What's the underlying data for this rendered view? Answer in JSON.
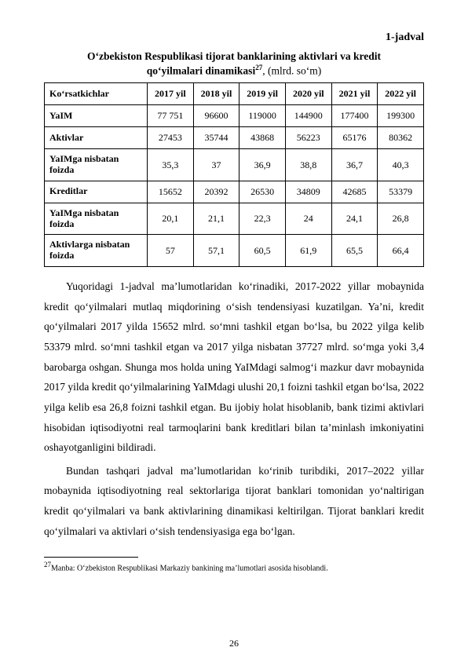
{
  "jadval_label": "1-jadval",
  "title_line1": "Oʻzbekiston Respublikasi tijorat banklarining aktivlari va kredit",
  "title_line2_bold": "qoʻyilmalari dinamikasi",
  "title_line2_sup": "27",
  "title_line2_tail": ", (mlrd. soʻm)",
  "table": {
    "columns": [
      "Koʻrsatkichlar",
      "2017 yil",
      "2018 yil",
      "2019 yil",
      "2020 yil",
      "2021 yil",
      "2022 yil"
    ],
    "rows": [
      {
        "label": "YaIM",
        "cells": [
          "77 751",
          "96600",
          "119000",
          "144900",
          "177400",
          "199300"
        ]
      },
      {
        "label": "Aktivlar",
        "cells": [
          "27453",
          "35744",
          "43868",
          "56223",
          "65176",
          "80362"
        ]
      },
      {
        "label": "YaIMga nisbatan foizda",
        "cells": [
          "35,3",
          "37",
          "36,9",
          "38,8",
          "36,7",
          "40,3"
        ]
      },
      {
        "label": "Kreditlar",
        "cells": [
          "15652",
          "20392",
          "26530",
          "34809",
          "42685",
          "53379"
        ]
      },
      {
        "label": "YaIMga nisbatan foizda",
        "cells": [
          "20,1",
          "21,1",
          "22,3",
          "24",
          "24,1",
          "26,8"
        ]
      },
      {
        "label": "Aktivlarga nisbatan foizda",
        "cells": [
          "57",
          "57,1",
          "60,5",
          "61,9",
          "65,5",
          "66,4"
        ]
      }
    ]
  },
  "para1": "Yuqoridagi 1-jadval maʼlumotlaridan koʻrinadiki, 2017-2022  yillar mobaynida kredit qoʻyilmalari mutlaq miqdorining oʻsish tendensiyasi kuzatilgan. Yaʼni, kredit qoʻyilmalari 2017 yilda 15652 mlrd. soʻmni tashkil etgan boʻlsa, bu 2022 yilga kelib 53379 mlrd. soʻmni tashkil etgan va 2017 yilga nisbatan 37727 mlrd. soʻmga yoki 3,4 barobarga oshgan. Shunga mos holda uning YaIMdagi salmogʻi mazkur davr mobaynida 2017 yilda kredit qoʻyilmalarining YaIMdagi ulushi 20,1 foizni tashkil etgan boʻlsa, 2022 yilga kelib esa 26,8 foizni tashkil etgan. Bu ijobiy holat hisoblanib, bank tizimi aktivlari hisobidan iqtisodiyotni real tarmoqlarini bank kreditlari bilan taʼminlash imkoniyatini oshayotganligini bildiradi.",
  "para2": "Bundan tashqari jadval maʼlumotlaridan koʻrinib turibdiki, 2017–2022 yillar mobaynida iqtisodiyotning real sektorlariga tijorat banklari  tomonidan yoʻnaltirigan kredit qoʻyilmalari va bank aktivlarining dinamikasi keltirilgan. Tijorat banklari kredit qoʻyilmalari va aktivlari oʻsish tendensiyasiga ega boʻlgan.",
  "footnote_sup": "27",
  "footnote_text": "Manba: Oʻzbekiston Respublikasi Markaziy bankining maʼlumotlari asosida hisoblandi.",
  "page_number": "26"
}
